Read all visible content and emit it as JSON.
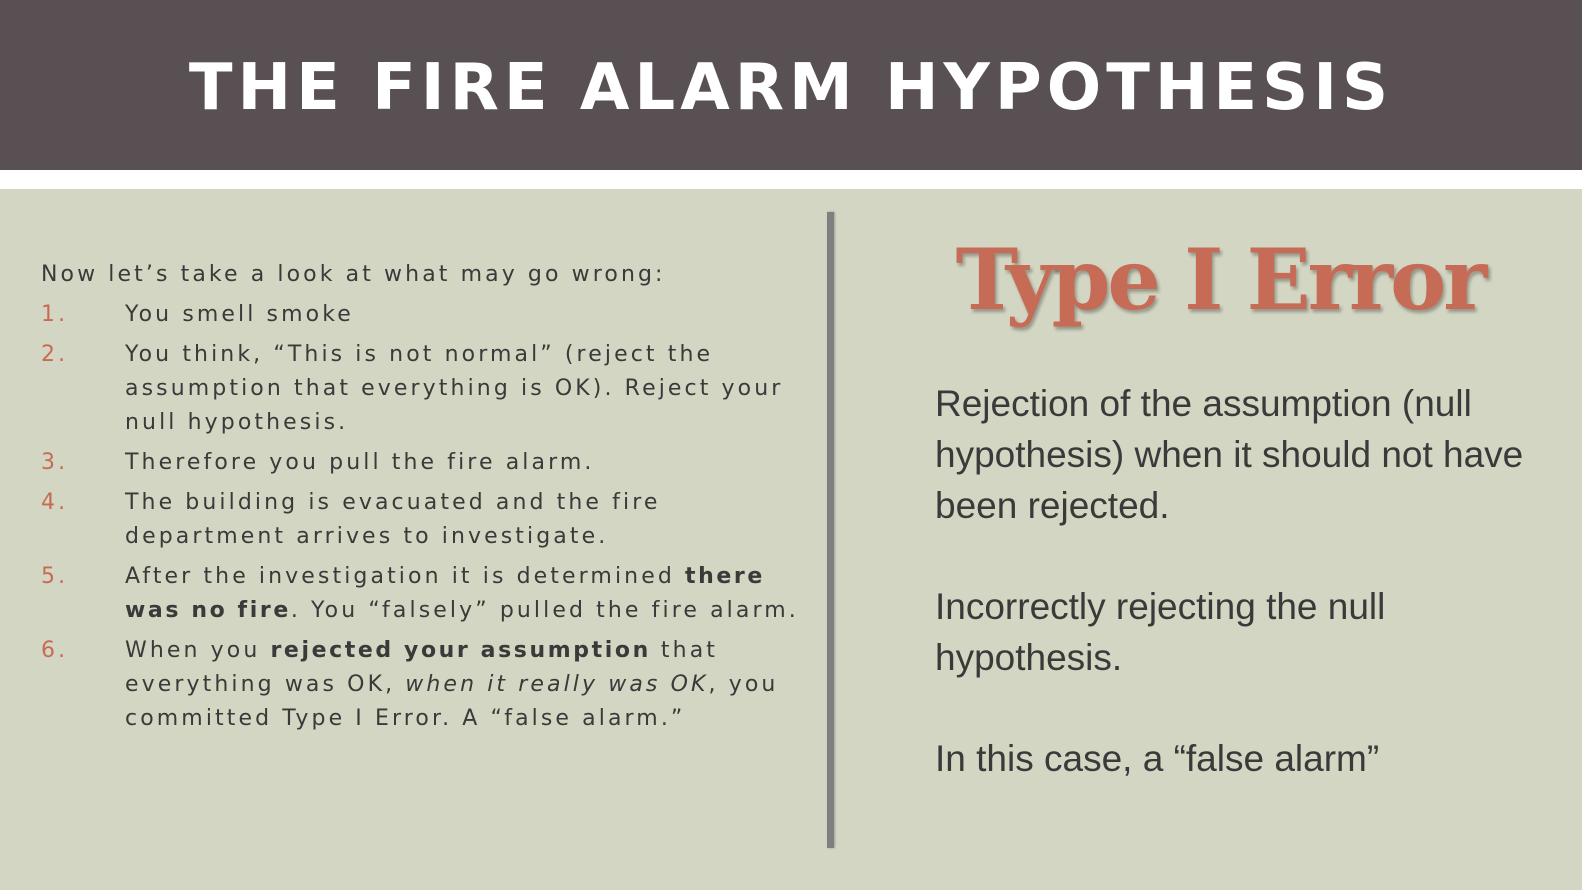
{
  "header": {
    "title": "THE FIRE ALARM HYPOTHESIS"
  },
  "left": {
    "intro": "Now let’s take a look at what may go wrong:",
    "items": [
      {
        "number": "1.",
        "text": "You smell smoke"
      },
      {
        "number": "2.",
        "text": "You think, “This is not normal” (reject the assumption that everything is OK). Reject your null hypothesis."
      },
      {
        "number": "3.",
        "text": "Therefore you pull the fire alarm."
      },
      {
        "number": "4.",
        "text": "The building is evacuated and the fire department arrives to investigate."
      },
      {
        "number": "5.",
        "text_a": "After the investigation it is determined ",
        "text_bold": "there was no fire",
        "text_b": ". You “falsely” pulled the fire alarm."
      },
      {
        "number": "6.",
        "text_a": "When you ",
        "text_bold": "rejected your assumption",
        "text_b": " that everything was OK, ",
        "text_italic": "when it really was OK",
        "text_c": ", you committed Type I Error. A “false alarm.”"
      }
    ]
  },
  "right": {
    "heading": "Type I Error",
    "paragraphs": [
      "Rejection of the assumption (null hypothesis) when it should not have been rejected.",
      "Incorrectly rejecting the null hypothesis.",
      "In this case, a “false alarm”"
    ]
  },
  "colors": {
    "header_bg": "#595053",
    "body_bg": "#d3d6c2",
    "accent": "#c66c56",
    "text": "#3a3a3a",
    "divider": "#7f7f7f"
  }
}
